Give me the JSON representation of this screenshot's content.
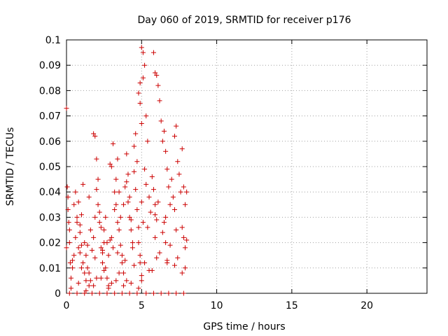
{
  "chart_data": {
    "type": "scatter",
    "title": "Day 060 of 2019, SRMTID for receiver p176",
    "xlabel": "GPS time / hours",
    "ylabel": "SRMTID / TECUs",
    "xlim": [
      0,
      24
    ],
    "ylim": [
      0,
      0.1
    ],
    "xticks": [
      0,
      5,
      10,
      15,
      20
    ],
    "xtick_labels": [
      "0",
      "5",
      "10",
      "15",
      "20"
    ],
    "yticks": [
      0,
      0.01,
      0.02,
      0.03,
      0.04,
      0.05,
      0.06,
      0.07,
      0.08,
      0.09,
      0.1
    ],
    "ytick_labels": [
      "0",
      "0.01",
      "0.02",
      "0.03",
      "0.04",
      "0.05",
      "0.06",
      "0.07",
      "0.08",
      "0.09",
      "0.1"
    ],
    "grid": true,
    "marker": "+",
    "color": "#cc0000",
    "series": [
      {
        "name": "SRMTID",
        "x": [
          0.0,
          0.05,
          0.1,
          0.15,
          0.2,
          0.25,
          0.3,
          0.1,
          0.2,
          0.0,
          0.4,
          0.5,
          0.6,
          0.7,
          0.8,
          0.9,
          1.0,
          1.1,
          1.2,
          1.3,
          0.5,
          0.6,
          0.7,
          0.8,
          0.9,
          1.0,
          1.1,
          1.2,
          1.3,
          1.4,
          1.5,
          1.6,
          1.7,
          1.8,
          1.9,
          2.0,
          2.1,
          2.2,
          2.3,
          2.4,
          1.5,
          1.6,
          1.8,
          1.9,
          2.0,
          2.1,
          2.2,
          2.3,
          2.4,
          2.5,
          2.5,
          2.6,
          2.7,
          2.8,
          2.9,
          3.0,
          3.1,
          3.2,
          3.3,
          3.4,
          2.6,
          2.7,
          2.8,
          3.0,
          3.1,
          3.2,
          3.3,
          3.4,
          3.5,
          3.6,
          3.5,
          3.6,
          3.7,
          3.8,
          3.9,
          4.0,
          4.1,
          4.2,
          4.3,
          4.4,
          3.7,
          3.8,
          4.0,
          4.1,
          4.2,
          4.3,
          4.5,
          4.6,
          4.7,
          4.8,
          4.5,
          4.6,
          4.7,
          4.8,
          4.9,
          5.0,
          5.1,
          5.2,
          5.3,
          5.4,
          4.9,
          5.0,
          5.1,
          5.2,
          5.3,
          5.0,
          5.1,
          4.8,
          4.9,
          5.0,
          5.5,
          5.6,
          5.7,
          5.8,
          5.9,
          6.0,
          6.1,
          6.2,
          6.3,
          6.4,
          5.8,
          5.9,
          6.0,
          5.9,
          6.0,
          6.5,
          6.6,
          6.7,
          6.8,
          6.9,
          6.5,
          6.6,
          6.7,
          7.0,
          7.1,
          7.2,
          7.3,
          7.4,
          7.5,
          7.6,
          7.2,
          7.3,
          7.7,
          7.8,
          7.9,
          8.0,
          7.7,
          7.8,
          7.9,
          8.0,
          1.0,
          1.5,
          2.0,
          2.5,
          3.0,
          3.5,
          4.0,
          4.5,
          5.0,
          5.5,
          0.3,
          0.8,
          1.3,
          1.8,
          2.3,
          2.8,
          3.3,
          3.8,
          4.3,
          4.8,
          0.2,
          0.7,
          1.2,
          1.7,
          2.2,
          2.7,
          3.2,
          3.7,
          4.2,
          4.7,
          0.4,
          0.9,
          1.4,
          1.9,
          2.4,
          2.9,
          3.4,
          3.9,
          4.4,
          4.9,
          5.2,
          5.7,
          6.2,
          6.7,
          7.2,
          7.7,
          5.3,
          5.8,
          6.3,
          6.8,
          7.3,
          7.8,
          5.4,
          5.9,
          6.4,
          6.9,
          7.4,
          7.9,
          6.1,
          6.6
        ],
        "y": [
          0.073,
          0.042,
          0.038,
          0.028,
          0.02,
          0.012,
          0.006,
          0.033,
          0.025,
          0.018,
          0.01,
          0.015,
          0.022,
          0.03,
          0.036,
          0.027,
          0.019,
          0.012,
          0.008,
          0.005,
          0.035,
          0.04,
          0.028,
          0.018,
          0.024,
          0.031,
          0.043,
          0.02,
          0.015,
          0.01,
          0.038,
          0.025,
          0.017,
          0.022,
          0.03,
          0.041,
          0.035,
          0.028,
          0.018,
          0.012,
          0.008,
          0.005,
          0.063,
          0.062,
          0.053,
          0.045,
          0.032,
          0.026,
          0.016,
          0.02,
          0.025,
          0.03,
          0.02,
          0.015,
          0.051,
          0.05,
          0.059,
          0.04,
          0.035,
          0.028,
          0.01,
          0.006,
          0.003,
          0.022,
          0.018,
          0.033,
          0.045,
          0.053,
          0.04,
          0.03,
          0.025,
          0.019,
          0.012,
          0.035,
          0.042,
          0.055,
          0.047,
          0.038,
          0.029,
          0.02,
          0.015,
          0.008,
          0.044,
          0.036,
          0.03,
          0.025,
          0.048,
          0.041,
          0.033,
          0.026,
          0.058,
          0.063,
          0.052,
          0.079,
          0.083,
          0.097,
          0.095,
          0.09,
          0.07,
          0.06,
          0.075,
          0.067,
          0.085,
          0.049,
          0.043,
          0.036,
          0.028,
          0.02,
          0.012,
          0.005,
          0.038,
          0.032,
          0.046,
          0.095,
          0.087,
          0.086,
          0.082,
          0.076,
          0.068,
          0.06,
          0.041,
          0.035,
          0.029,
          0.022,
          0.014,
          0.064,
          0.056,
          0.049,
          0.042,
          0.035,
          0.028,
          0.02,
          0.012,
          0.045,
          0.038,
          0.062,
          0.066,
          0.052,
          0.047,
          0.04,
          0.033,
          0.025,
          0.057,
          0.042,
          0.035,
          0.04,
          0.026,
          0.022,
          0.018,
          0.021,
          0.01,
          0.003,
          0.006,
          0.009,
          0.004,
          0.008,
          0.005,
          0.011,
          0.007,
          0.009,
          0.002,
          0.004,
          0.001,
          0.003,
          0.006,
          0.002,
          0.005,
          0.003,
          0.004,
          0.002,
          0.0,
          0.0,
          0.0,
          0.0,
          0.0,
          0.0,
          0.0,
          0.0,
          0.0,
          0.0,
          0.013,
          0.016,
          0.019,
          0.014,
          0.017,
          0.021,
          0.016,
          0.013,
          0.018,
          0.015,
          0.012,
          0.009,
          0.016,
          0.013,
          0.011,
          0.008,
          0.0,
          0.0,
          0.0,
          0.0,
          0.0,
          0.0,
          0.026,
          0.031,
          0.024,
          0.019,
          0.014,
          0.01,
          0.036,
          0.03
        ]
      }
    ]
  }
}
